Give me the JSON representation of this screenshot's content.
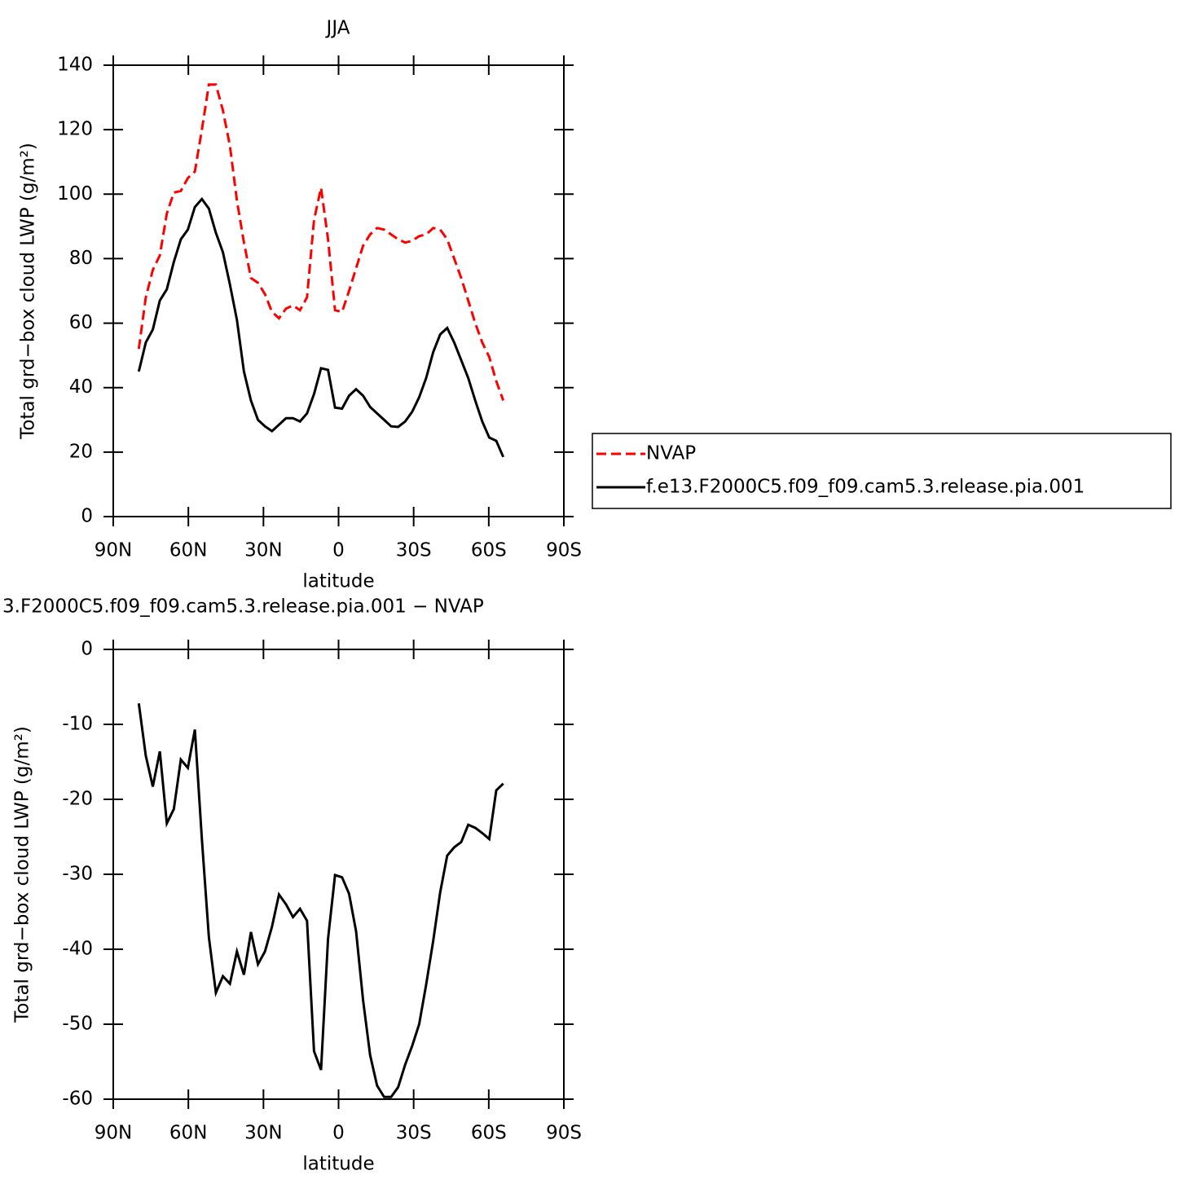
{
  "chart_data": [
    {
      "type": "line",
      "title": "JJA",
      "xlabel": "latitude",
      "ylabel": "Total grd−box cloud LWP (g/m²)",
      "x": [
        79.8,
        77,
        74.2,
        71.4,
        68.6,
        65.8,
        63,
        60.2,
        57.4,
        54.6,
        51.8,
        49,
        46.2,
        43.4,
        40.6,
        37.8,
        35,
        32.2,
        29.4,
        26.6,
        23.8,
        21,
        18.2,
        15.4,
        12.6,
        9.8,
        7,
        4.2,
        1.4,
        -1.4,
        -4.2,
        -7,
        -9.8,
        -12.6,
        -15.4,
        -18.2,
        -21,
        -23.8,
        -26.6,
        -29.4,
        -32.2,
        -35,
        -37.8,
        -40.6,
        -43.4,
        -46.2,
        -49,
        -51.8,
        -54.6,
        -57.4,
        -60.2,
        -63,
        -65.8
      ],
      "series": [
        {
          "name": "NVAP",
          "color": "#ff0000",
          "line_style": "dashed",
          "values": [
            52,
            68,
            76.5,
            81,
            94,
            100.5,
            101,
            105,
            107,
            120,
            134,
            134,
            126,
            115,
            98,
            85,
            74,
            72.5,
            69,
            63.5,
            61.5,
            64.5,
            65.5,
            64,
            68,
            92,
            102,
            86,
            64,
            63.5,
            70,
            77,
            84,
            87.5,
            89.5,
            89,
            87.5,
            86,
            85,
            85.5,
            87,
            87.5,
            89.5,
            89,
            86,
            80,
            74,
            67,
            60,
            54,
            49.5,
            42,
            36
          ]
        },
        {
          "name": "f.e13.F2000C5.f09_f09.cam5.3.release.pia.001",
          "color": "#000000",
          "line_style": "solid",
          "values": [
            45,
            54,
            58,
            67,
            70.5,
            79,
            86,
            89,
            96,
            98.5,
            95.5,
            88,
            82,
            72,
            61,
            45,
            36,
            30,
            28,
            26.5,
            28.5,
            30.5,
            30.5,
            29.5,
            32,
            38,
            46,
            45.5,
            33.8,
            33.5,
            37.5,
            39.5,
            37.5,
            34,
            32,
            30,
            28,
            27.8,
            29.5,
            32.5,
            37,
            43,
            51,
            56.5,
            58.5,
            54,
            48.5,
            43,
            36,
            29.5,
            24.5,
            23.5,
            18.5
          ]
        }
      ],
      "xlim": [
        90,
        -90
      ],
      "xticks": [
        {
          "value": 90,
          "label": "90N"
        },
        {
          "value": 60,
          "label": "60N"
        },
        {
          "value": 30,
          "label": "30N"
        },
        0,
        {
          "value": -30,
          "label": "30S"
        },
        {
          "value": -60,
          "label": "60S"
        },
        {
          "value": -90,
          "label": "90S"
        }
      ],
      "ylim": [
        0,
        140
      ],
      "yticks": [
        0,
        20,
        40,
        60,
        80,
        100,
        120,
        140
      ],
      "legend": "right"
    },
    {
      "type": "line",
      "title": "3.F2000C5.f09_f09.cam5.3.release.pia.001 − NVAP",
      "xlabel": "latitude",
      "ylabel": "Total grd−box cloud LWP (g/m²)",
      "x": [
        79.8,
        77,
        74.2,
        71.4,
        68.6,
        65.8,
        63,
        60.2,
        57.4,
        54.6,
        51.8,
        49,
        46.2,
        43.4,
        40.6,
        37.8,
        35,
        32.2,
        29.4,
        26.6,
        23.8,
        21,
        18.2,
        15.4,
        12.6,
        9.8,
        7,
        4.2,
        1.4,
        -1.4,
        -4.2,
        -7,
        -9.8,
        -12.6,
        -15.4,
        -18.2,
        -21,
        -23.8,
        -26.6,
        -29.4,
        -32.2,
        -35,
        -37.8,
        -40.6,
        -43.4,
        -46.2,
        -49,
        -51.8,
        -54.6,
        -57.4,
        -60.2,
        -63,
        -65.8
      ],
      "color": "#000000",
      "values": [
        -7.2,
        -14.2,
        -18.3,
        -13.6,
        -23.2,
        -21.3,
        -14.7,
        -15.8,
        -10.7,
        -25.3,
        -38.4,
        -45.8,
        -43.6,
        -44.6,
        -40.3,
        -43.4,
        -37.7,
        -42,
        -40.3,
        -37,
        -32.7,
        -34,
        -35.7,
        -34.6,
        -36.2,
        -53.6,
        -56.1,
        -38.6,
        -30.1,
        -30.4,
        -32.6,
        -37.6,
        -46.8,
        -54.1,
        -58.2,
        -59.7,
        -59.7,
        -58.4,
        -55.4,
        -52.9,
        -50,
        -44.7,
        -38.9,
        -32.4,
        -27.5,
        -26.4,
        -25.7,
        -23.4,
        -23.8,
        -24.5,
        -25.3,
        -18.8,
        -17.9
      ],
      "xlim": [
        90,
        -90
      ],
      "xticks": [
        {
          "value": 90,
          "label": "90N"
        },
        {
          "value": 60,
          "label": "60N"
        },
        {
          "value": 30,
          "label": "30N"
        },
        0,
        {
          "value": -30,
          "label": "30S"
        },
        {
          "value": -60,
          "label": "60S"
        },
        {
          "value": -90,
          "label": "90S"
        }
      ],
      "ylim": [
        -60,
        0
      ],
      "yticks": [
        -60,
        -50,
        -40,
        -30,
        -20,
        -10,
        0
      ]
    }
  ]
}
